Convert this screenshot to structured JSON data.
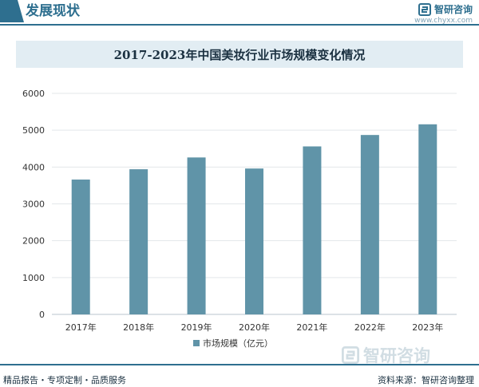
{
  "header": {
    "section_title": "发展现状",
    "brand_name": "智研咨询",
    "brand_url": "www.chyxx.com"
  },
  "chart_data": {
    "type": "bar",
    "title": "2017-2023年中国美妆行业市场规模变化情况",
    "categories": [
      "2017年",
      "2018年",
      "2019年",
      "2020年",
      "2021年",
      "2022年",
      "2023年"
    ],
    "series": [
      {
        "name": "市场规模（亿元）",
        "values": [
          3660,
          3940,
          4260,
          3960,
          4560,
          4870,
          5160
        ]
      }
    ],
    "ylim": [
      0,
      6000
    ],
    "yticks": [
      0,
      1000,
      2000,
      3000,
      4000,
      5000,
      6000
    ],
    "grid": true,
    "legend_position": "bottom",
    "bar_color": "#6094a8"
  },
  "watermark": {
    "text": "智研咨询"
  },
  "footer": {
    "left_text": "精品报告・专项定制・品质服务",
    "right_text": "资料来源：智研咨询整理"
  },
  "colors": {
    "brand": "#2e6f8f",
    "bar": "#6094a8",
    "title_band": "#e2edf3"
  }
}
